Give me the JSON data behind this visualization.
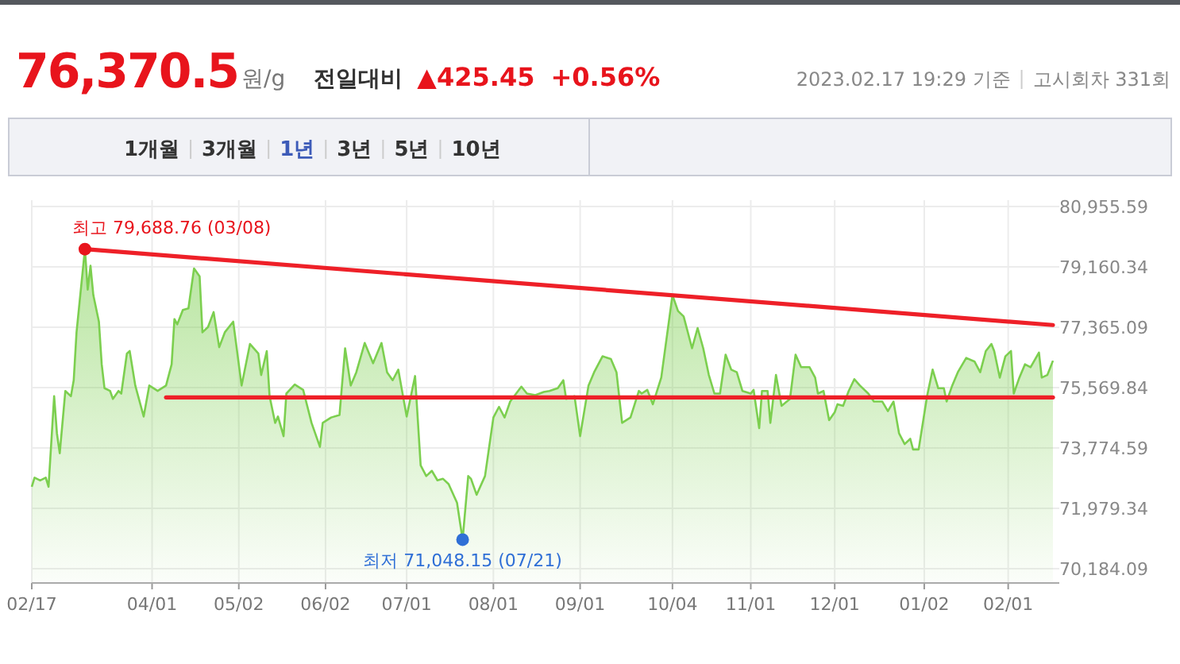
{
  "chart_data": {
    "type": "area",
    "title": "76,370.5",
    "annotations": [
      "원/g",
      "전일대비",
      "▲425.45",
      "+0.56%",
      "2023.02.17 19:29 기준",
      "고시회차 331회",
      "1개월",
      "3개월",
      "1년",
      "3년",
      "5년",
      "10년",
      {
        "text": "최고 79,688.76 (03/08)",
        "x": "2022-03-08",
        "y": 79688.76
      },
      {
        "text": "최저 71,048.15 (07/21)",
        "x": "2022-07-21",
        "y": 71048.15
      }
    ],
    "x": [
      "2022-02-17",
      "2022-02-18",
      "2022-02-20",
      "2022-02-22",
      "2022-02-23",
      "2022-02-25",
      "2022-02-26",
      "2022-02-27",
      "2022-03-01",
      "2022-03-03",
      "2022-03-04",
      "2022-03-05",
      "2022-03-08",
      "2022-03-09",
      "2022-03-10",
      "2022-03-11",
      "2022-03-13",
      "2022-03-14",
      "2022-03-15",
      "2022-03-17",
      "2022-03-18",
      "2022-03-20",
      "2022-03-21",
      "2022-03-23",
      "2022-03-24",
      "2022-03-26",
      "2022-03-29",
      "2022-03-31",
      "2022-04-03",
      "2022-04-06",
      "2022-04-08",
      "2022-04-09",
      "2022-04-10",
      "2022-04-12",
      "2022-04-14",
      "2022-04-16",
      "2022-04-18",
      "2022-04-19",
      "2022-04-21",
      "2022-04-23",
      "2022-04-25",
      "2022-04-27",
      "2022-04-30",
      "2022-05-03",
      "2022-05-06",
      "2022-05-09",
      "2022-05-10",
      "2022-05-12",
      "2022-05-13",
      "2022-05-15",
      "2022-05-16",
      "2022-05-18",
      "2022-05-19",
      "2022-05-22",
      "2022-05-25",
      "2022-05-28",
      "2022-05-31",
      "2022-06-01",
      "2022-06-04",
      "2022-06-07",
      "2022-06-09",
      "2022-06-11",
      "2022-06-13",
      "2022-06-16",
      "2022-06-19",
      "2022-06-22",
      "2022-06-24",
      "2022-06-26",
      "2022-06-28",
      "2022-07-01",
      "2022-07-04",
      "2022-07-06",
      "2022-07-08",
      "2022-07-10",
      "2022-07-12",
      "2022-07-14",
      "2022-07-16",
      "2022-07-19",
      "2022-07-21",
      "2022-07-23",
      "2022-07-24",
      "2022-07-26",
      "2022-07-29",
      "2022-08-01",
      "2022-08-03",
      "2022-08-05",
      "2022-08-07",
      "2022-08-11",
      "2022-08-13",
      "2022-08-16",
      "2022-08-19",
      "2022-08-21",
      "2022-08-24",
      "2022-08-26",
      "2022-08-27",
      "2022-08-30",
      "2022-09-01",
      "2022-09-04",
      "2022-09-06",
      "2022-09-09",
      "2022-09-12",
      "2022-09-14",
      "2022-09-16",
      "2022-09-19",
      "2022-09-22",
      "2022-09-23",
      "2022-09-25",
      "2022-09-27",
      "2022-09-30",
      "2022-10-04",
      "2022-10-06",
      "2022-10-08",
      "2022-10-11",
      "2022-10-13",
      "2022-10-15",
      "2022-10-17",
      "2022-10-19",
      "2022-10-21",
      "2022-10-23",
      "2022-10-25",
      "2022-10-27",
      "2022-10-29",
      "2022-11-01",
      "2022-11-02",
      "2022-11-04",
      "2022-11-05",
      "2022-11-07",
      "2022-11-08",
      "2022-11-10",
      "2022-11-12",
      "2022-11-15",
      "2022-11-17",
      "2022-11-19",
      "2022-11-22",
      "2022-11-24",
      "2022-11-25",
      "2022-11-27",
      "2022-11-29",
      "2022-12-01",
      "2022-12-02",
      "2022-12-04",
      "2022-12-06",
      "2022-12-08",
      "2022-12-10",
      "2022-12-13",
      "2022-12-15",
      "2022-12-18",
      "2022-12-20",
      "2022-12-22",
      "2022-12-24",
      "2022-12-26",
      "2022-12-28",
      "2022-12-29",
      "2022-12-31",
      "2023-01-03",
      "2023-01-05",
      "2023-01-07",
      "2023-01-09",
      "2023-01-10",
      "2023-01-12",
      "2023-01-14",
      "2023-01-17",
      "2023-01-20",
      "2023-01-22",
      "2023-01-24",
      "2023-01-26",
      "2023-01-27",
      "2023-01-29",
      "2023-01-31",
      "2023-02-02",
      "2023-02-03",
      "2023-02-05",
      "2023-02-07",
      "2023-02-09",
      "2023-02-12",
      "2023-02-13",
      "2023-02-15",
      "2023-02-17"
    ],
    "series": [
      {
        "color": "#7ccf4f",
        "values": [
          72621,
          72892,
          72811,
          72892,
          72621,
          75314,
          74207,
          73618,
          75471,
          75314,
          75789,
          77214,
          79688.76,
          78482,
          79194,
          78320,
          77532,
          76264,
          75552,
          75471,
          75233,
          75471,
          75393,
          76582,
          76658,
          75632,
          74711,
          75632,
          75471,
          75632,
          76264,
          77609,
          77451,
          77879,
          77926,
          79114,
          78876,
          77214,
          77371,
          77817,
          76772,
          77214,
          77532,
          75632,
          76867,
          76582,
          75946,
          76658,
          75314,
          74521,
          74711,
          74126,
          75393,
          75661,
          75504,
          74521,
          73808,
          74521,
          74682,
          74758,
          76739,
          75632,
          76026,
          76897,
          76296,
          76897,
          76026,
          75789,
          76106,
          74711,
          75915,
          73258,
          72939,
          73096,
          72812,
          72858,
          72701,
          72146,
          71048.15,
          72939,
          72858,
          72383,
          72939,
          74682,
          74998,
          74682,
          75156,
          75599,
          75393,
          75345,
          75440,
          75471,
          75552,
          75789,
          75233,
          75314,
          74126,
          75632,
          76026,
          76501,
          76422,
          76026,
          74521,
          74682,
          75471,
          75393,
          75504,
          75076,
          75868,
          78320,
          77846,
          77688,
          76739,
          77342,
          76739,
          75946,
          75393,
          75393,
          76549,
          76106,
          76026,
          75471,
          75393,
          75504,
          74364,
          75471,
          75471,
          74521,
          75946,
          75029,
          75233,
          76549,
          76177,
          76177,
          75868,
          75393,
          75471,
          74601,
          74839,
          75076,
          75029,
          75471,
          75820,
          75632,
          75393,
          75156,
          75156,
          74871,
          75156,
          74207,
          73889,
          74047,
          73731,
          73731,
          75314,
          76106,
          75552,
          75552,
          75156,
          75632,
          76026,
          76454,
          76343,
          76026,
          76658,
          76867,
          76658,
          75868,
          76501,
          76658,
          75393,
          75868,
          76264,
          76177,
          76613,
          75868,
          75946,
          76370.5
        ]
      },
      {
        "type": "line",
        "color": "#ee2028",
        "x": [
          "2022-03-08",
          "2023-02-17"
        ],
        "values": [
          79688.76,
          77430
        ]
      },
      {
        "type": "line",
        "color": "#ee2028",
        "x": [
          "2022-04-06",
          "2023-02-17"
        ],
        "values": [
          75280,
          75280
        ]
      }
    ],
    "xlim": [
      "2022-02-17",
      "2023-02-17"
    ],
    "ylim": [
      69760,
      80955.59
    ],
    "xticks": [
      {
        "value": "2022-02-17",
        "label": "02/17"
      },
      {
        "value": "2022-04-01",
        "label": "04/01"
      },
      {
        "value": "2022-05-02",
        "label": "05/02"
      },
      {
        "value": "2022-06-02",
        "label": "06/02"
      },
      {
        "value": "2022-07-01",
        "label": "07/01"
      },
      {
        "value": "2022-08-01",
        "label": "08/01"
      },
      {
        "value": "2022-09-01",
        "label": "09/01"
      },
      {
        "value": "2022-10-04",
        "label": "10/04"
      },
      {
        "value": "2022-11-01",
        "label": "11/01"
      },
      {
        "value": "2022-12-01",
        "label": "12/01"
      },
      {
        "value": "2023-01-02",
        "label": "01/02"
      },
      {
        "value": "2023-02-01",
        "label": "02/01"
      }
    ],
    "yticks": [
      {
        "value": 70184.09,
        "label": "70,184.09"
      },
      {
        "value": 71979.34,
        "label": "71,979.34"
      },
      {
        "value": 73774.59,
        "label": "73,774.59"
      },
      {
        "value": 75569.84,
        "label": "75,569.84"
      },
      {
        "value": 77365.09,
        "label": "77,365.09"
      },
      {
        "value": 79160.34,
        "label": "79,160.34"
      },
      {
        "value": 80955.59,
        "label": "80,955.59"
      }
    ],
    "grid": true
  }
}
